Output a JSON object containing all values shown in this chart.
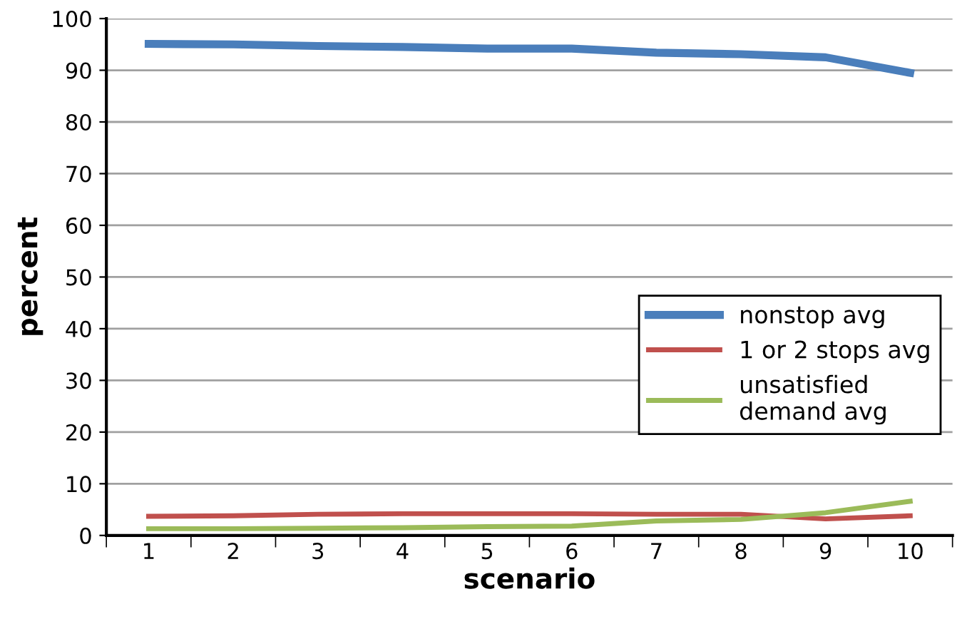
{
  "chart_data": {
    "type": "line",
    "xlabel": "scenario",
    "ylabel": "percent",
    "categories": [
      "1",
      "2",
      "3",
      "4",
      "5",
      "6",
      "7",
      "8",
      "9",
      "10"
    ],
    "series": [
      {
        "name": "nonstop avg",
        "color": "#4a7ebb",
        "values": [
          95.1,
          95.0,
          94.7,
          94.5,
          94.2,
          94.2,
          93.4,
          93.1,
          92.5,
          89.5
        ]
      },
      {
        "name": "1 or 2 stops avg",
        "color": "#c0504d",
        "values": [
          3.7,
          3.8,
          4.1,
          4.2,
          4.2,
          4.2,
          4.1,
          4.1,
          3.2,
          3.8
        ]
      },
      {
        "name": "unsatisfied\ndemand avg",
        "color": "#9bbb59",
        "values": [
          1.3,
          1.3,
          1.4,
          1.5,
          1.7,
          1.8,
          2.8,
          3.1,
          4.4,
          6.6
        ]
      }
    ],
    "ylim": [
      0,
      100
    ],
    "yticks": [
      0,
      10,
      20,
      30,
      40,
      50,
      60,
      70,
      80,
      90,
      100
    ],
    "grid": "y",
    "legend": "right",
    "marker": "none",
    "line_style": "solid"
  }
}
